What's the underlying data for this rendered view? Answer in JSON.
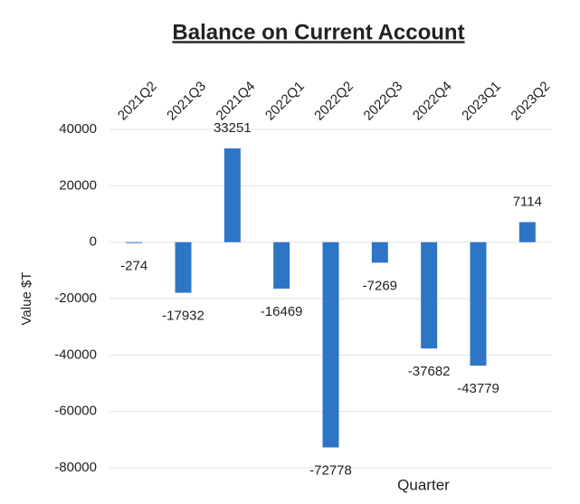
{
  "chart_data": {
    "type": "bar",
    "title": "Balance on Current Account",
    "categories": [
      "2021Q2",
      "2021Q3",
      "2021Q4",
      "2022Q1",
      "2022Q2",
      "2022Q3",
      "2022Q4",
      "2023Q1",
      "2023Q2"
    ],
    "values": [
      -274,
      -17932,
      33251,
      -16469,
      -72778,
      -7269,
      -37682,
      -43779,
      7114
    ],
    "color": "#2e75c6",
    "ylim": [
      -80000,
      40000
    ],
    "yticks": [
      -80000,
      -60000,
      -40000,
      -20000,
      0,
      20000,
      40000
    ],
    "grid": true,
    "y_label": "Value $T",
    "x_label": "Quarter"
  }
}
